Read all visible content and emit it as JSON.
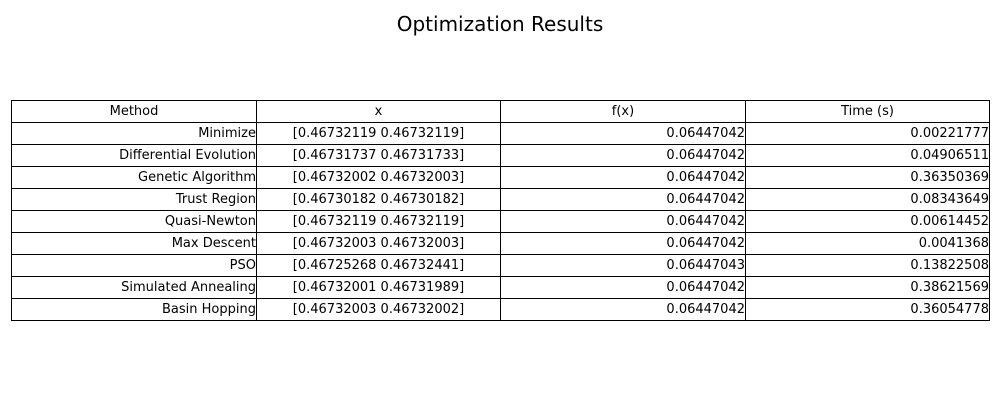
{
  "chart_data": {
    "type": "table",
    "title": "Optimization Results",
    "columns": [
      "Method",
      "x",
      "f(x)",
      "Time (s)"
    ],
    "rows": [
      [
        "Minimize",
        "[0.46732119 0.46732119]",
        "0.06447042",
        "0.00221777"
      ],
      [
        "Differential Evolution",
        "[0.46731737 0.46731733]",
        "0.06447042",
        "0.04906511"
      ],
      [
        "Genetic Algorithm",
        "[0.46732002 0.46732003]",
        "0.06447042",
        "0.36350369"
      ],
      [
        "Trust Region",
        "[0.46730182 0.46730182]",
        "0.06447042",
        "0.08343649"
      ],
      [
        "Quasi-Newton",
        "[0.46732119 0.46732119]",
        "0.06447042",
        "0.00614452"
      ],
      [
        "Max Descent",
        "[0.46732003 0.46732003]",
        "0.06447042",
        "0.0041368"
      ],
      [
        "PSO",
        "[0.46725268 0.46732441]",
        "0.06447043",
        "0.13822508"
      ],
      [
        "Simulated Annealing",
        "[0.46732001 0.46731989]",
        "0.06447042",
        "0.38621569"
      ],
      [
        "Basin Hopping",
        "[0.46732003 0.46732002]",
        "0.06447042",
        "0.36054778"
      ]
    ]
  }
}
